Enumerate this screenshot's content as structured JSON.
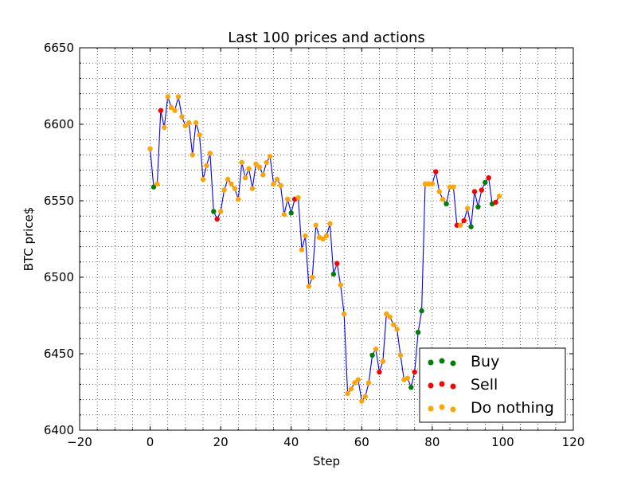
{
  "chart_data": {
    "type": "scatter",
    "title": "Last 100 prices and actions",
    "xlabel": "Step",
    "ylabel": "BTC price$",
    "xlim": [
      -20,
      120
    ],
    "ylim": [
      6400,
      6650
    ],
    "xticks": [
      -20,
      0,
      20,
      40,
      60,
      80,
      100,
      120
    ],
    "yticks": [
      6400,
      6450,
      6500,
      6550,
      6600,
      6650
    ],
    "xtick_labels": [
      "−20",
      "0",
      "20",
      "40",
      "60",
      "80",
      "100",
      "120"
    ],
    "ytick_labels": [
      "6400",
      "6450",
      "6500",
      "6550",
      "6600",
      "6650"
    ],
    "grid": true,
    "legend_position": "lower-right",
    "price_line": {
      "color": "#0000ff",
      "x": [
        0,
        1,
        2,
        3,
        4,
        5,
        6,
        7,
        8,
        9,
        10,
        11,
        12,
        13,
        14,
        15,
        16,
        17,
        18,
        19,
        20,
        21,
        22,
        23,
        24,
        25,
        26,
        27,
        28,
        29,
        30,
        31,
        32,
        33,
        34,
        35,
        36,
        37,
        38,
        39,
        40,
        41,
        42,
        43,
        44,
        45,
        46,
        47,
        48,
        49,
        50,
        51,
        52,
        53,
        54,
        55,
        56,
        57,
        58,
        59,
        60,
        61,
        62,
        63,
        64,
        65,
        66,
        67,
        68,
        69,
        70,
        71,
        72,
        73,
        74,
        75,
        76,
        77,
        78,
        79,
        80,
        81,
        82,
        83,
        84,
        85,
        86,
        87,
        88,
        89,
        90,
        91,
        92,
        93,
        94,
        95,
        96,
        97,
        98,
        99
      ],
      "y": [
        6584,
        6559,
        6561,
        6609,
        6598,
        6618,
        6611,
        6609,
        6618,
        6605,
        6599,
        6601,
        6580,
        6601,
        6593,
        6564,
        6573,
        6581,
        6543,
        6538,
        6543,
        6557,
        6564,
        6561,
        6558,
        6551,
        6575,
        6565,
        6571,
        6558,
        6574,
        6572,
        6567,
        6575,
        6579,
        6561,
        6564,
        6560,
        6541,
        6551,
        6542,
        6551,
        6552,
        6518,
        6527,
        6494,
        6500,
        6534,
        6526,
        6525,
        6527,
        6535,
        6502,
        6509,
        6495,
        6476,
        6424,
        6427,
        6431,
        6433,
        6419,
        6422,
        6431,
        6449,
        6453,
        6438,
        6445,
        6476,
        6474,
        6469,
        6466,
        6449,
        6433,
        6434,
        6428,
        6438,
        6464,
        6478,
        6561,
        6561,
        6561,
        6569,
        6556,
        6551,
        6548,
        6559,
        6559,
        6534,
        6534,
        6537,
        6545,
        6533,
        6556,
        6546,
        6557,
        6562,
        6565,
        6548,
        6549,
        6553
      ]
    },
    "series": [
      {
        "name": "Buy",
        "color": "#008000",
        "x": [
          1,
          18,
          40,
          52,
          63,
          74,
          76,
          77,
          84,
          91,
          93,
          95,
          97
        ],
        "y": [
          6559,
          6543,
          6542,
          6502,
          6449,
          6428,
          6464,
          6478,
          6548,
          6533,
          6546,
          6562,
          6548
        ]
      },
      {
        "name": "Sell",
        "color": "#ff0000",
        "x": [
          3,
          19,
          41,
          53,
          65,
          75,
          81,
          87,
          89,
          92,
          94,
          96,
          98
        ],
        "y": [
          6609,
          6538,
          6551,
          6509,
          6438,
          6438,
          6569,
          6534,
          6537,
          6556,
          6557,
          6565,
          6549
        ]
      },
      {
        "name": "Do nothing",
        "color": "#ffa500",
        "x": [
          0,
          2,
          4,
          5,
          6,
          7,
          8,
          9,
          10,
          11,
          12,
          13,
          14,
          15,
          16,
          17,
          20,
          21,
          22,
          23,
          24,
          25,
          26,
          27,
          28,
          29,
          30,
          31,
          32,
          33,
          34,
          35,
          36,
          37,
          38,
          39,
          42,
          43,
          44,
          45,
          46,
          47,
          48,
          49,
          50,
          51,
          54,
          55,
          56,
          57,
          58,
          59,
          60,
          61,
          62,
          64,
          66,
          67,
          68,
          69,
          70,
          71,
          72,
          73,
          78,
          79,
          80,
          82,
          83,
          85,
          86,
          88,
          90,
          99
        ],
        "y": [
          6584,
          6561,
          6598,
          6618,
          6611,
          6609,
          6618,
          6605,
          6599,
          6601,
          6580,
          6601,
          6593,
          6564,
          6573,
          6581,
          6543,
          6557,
          6564,
          6561,
          6558,
          6551,
          6575,
          6565,
          6571,
          6558,
          6574,
          6572,
          6567,
          6575,
          6579,
          6561,
          6564,
          6560,
          6541,
          6551,
          6552,
          6518,
          6527,
          6494,
          6500,
          6534,
          6526,
          6525,
          6527,
          6535,
          6495,
          6476,
          6424,
          6427,
          6431,
          6433,
          6419,
          6422,
          6431,
          6453,
          6445,
          6476,
          6474,
          6469,
          6466,
          6449,
          6433,
          6434,
          6561,
          6561,
          6561,
          6556,
          6551,
          6559,
          6559,
          6534,
          6545,
          6553
        ]
      }
    ]
  }
}
